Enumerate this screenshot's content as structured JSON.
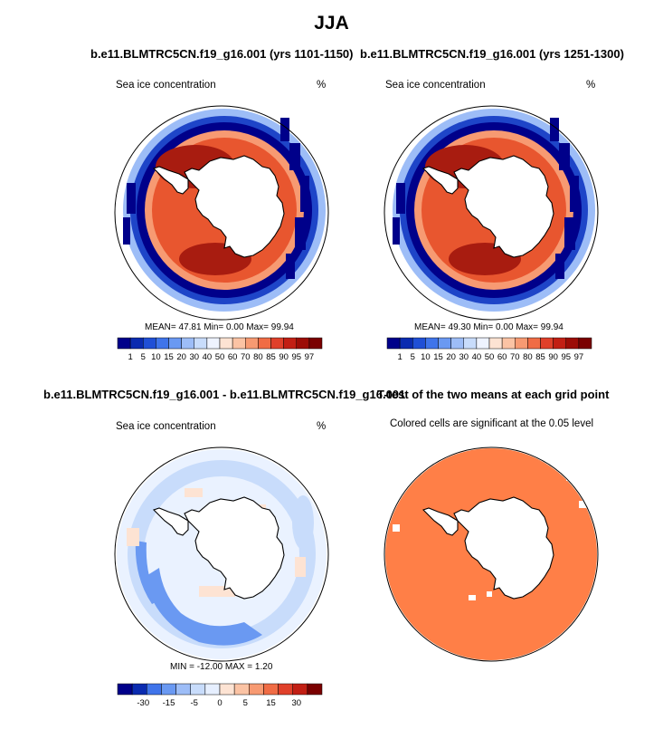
{
  "figure": {
    "title": "JJA"
  },
  "panels": {
    "top_left": {
      "title": "b.e11.BLMTRC5CN.f19_g16.001 (yrs 1101-1150)",
      "variable": "Sea ice concentration",
      "units": "%",
      "stats": "MEAN=  47.81  Min=   0.00  Max=  99.94"
    },
    "top_right": {
      "title": "b.e11.BLMTRC5CN.f19_g16.001 (yrs 1251-1300)",
      "variable": "Sea ice concentration",
      "units": "%",
      "stats": "MEAN=  49.30  Min=   0.00  Max=  99.94"
    },
    "bottom_left": {
      "title": "b.e11.BLMTRC5CN.f19_g16.001 - b.e11.BLMTRC5CN.f19_g16.001",
      "variable": "Sea ice concentration",
      "units": "%",
      "stats": "MIN = -12.00 MAX =   1.20"
    },
    "bottom_right": {
      "title": "T-test of the two means at each grid point",
      "subtitle": "Colored cells are significant at the 0.05 level"
    }
  },
  "colorbars": {
    "concentration": {
      "ticks": [
        "1",
        "5",
        "10",
        "15",
        "20",
        "30",
        "40",
        "50",
        "60",
        "70",
        "80",
        "85",
        "90",
        "95",
        "97"
      ],
      "colors": [
        "#00008a",
        "#0a2bb0",
        "#1f4fd6",
        "#3f74ea",
        "#6a99f2",
        "#9dbdf7",
        "#c8dcfb",
        "#eef3ff",
        "#fde3d3",
        "#fbc3a4",
        "#f79a72",
        "#f06c45",
        "#e0402a",
        "#c21f14",
        "#9c0c06",
        "#7a0000"
      ]
    },
    "difference": {
      "ticks": [
        "-30",
        "-15",
        "-5",
        "0",
        "5",
        "15",
        "30"
      ],
      "colors": [
        "#00008a",
        "#0a2bb0",
        "#3f74ea",
        "#6a99f2",
        "#9dbdf7",
        "#c8dcfb",
        "#e6efff",
        "#fde3d3",
        "#fbc3a4",
        "#f79a72",
        "#f06c45",
        "#e0402a",
        "#c21f14",
        "#7a0000"
      ]
    }
  },
  "map_colors": {
    "ice_dark": "#a81c10",
    "ice_mid": "#e8562f",
    "ice_light": "#f79a72",
    "edge_blue": "#1e45c8",
    "edge_light": "#9dbdf7",
    "diff_light": "#c8dcfb",
    "diff_mid": "#6a99f2",
    "diff_pink": "#fde3d3",
    "ttest": "#ff7f47"
  }
}
